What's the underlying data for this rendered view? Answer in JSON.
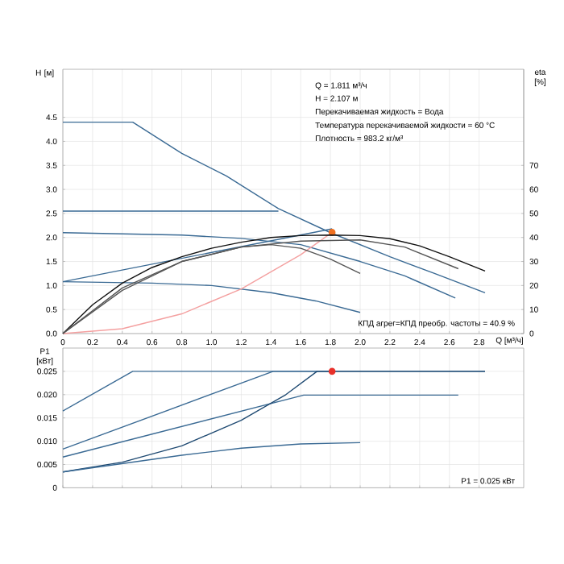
{
  "chart_data": [
    {
      "type": "line",
      "xlabel": "Q [м³/ч]",
      "ylabel": "H [м]",
      "y2label": "eta [%]",
      "xlim": [
        0,
        3.1
      ],
      "ylim": [
        0,
        5.5
      ],
      "y2lim": [
        0,
        110
      ],
      "grid": true,
      "xticks": [
        {
          "value": 0,
          "label": "0"
        },
        0.2,
        0.4,
        0.6,
        0.8,
        {
          "value": 1,
          "label": "1.0"
        },
        1.2,
        1.4,
        1.6,
        1.8,
        {
          "value": 2,
          "label": "2.0"
        },
        2.2,
        2.4,
        2.6,
        2.8
      ],
      "yticks": [
        {
          "value": 0,
          "label": "0.0"
        },
        0.5,
        {
          "value": 1,
          "label": "1.0"
        },
        1.5,
        {
          "value": 2,
          "label": "2.0"
        },
        2.5,
        {
          "value": 3,
          "label": "3.0"
        },
        3.5,
        {
          "value": 4,
          "label": "4.0"
        },
        4.5
      ],
      "y2ticks": [
        0,
        10,
        20,
        30,
        40,
        50,
        60,
        70
      ],
      "annotations": [
        "Q = 1.811 м³/ч",
        "H = 2.107 м",
        "Перекачиваемая жидкость = Вода",
        "Температура перекачиваемой жидкости = 60 °C",
        "Плотность = 983.2 кг/м³",
        "КПД агрег=КПД преобр. частоты = 40.9 %"
      ],
      "series": [
        {
          "color": "#3a6a94",
          "x": [
            0,
            0.47,
            0.8,
            1.1,
            1.45,
            1.8,
            2.2,
            2.5,
            2.84
          ],
          "values": [
            4.4,
            4.4,
            3.75,
            3.28,
            2.6,
            2.1,
            1.6,
            1.25,
            0.85
          ]
        },
        {
          "color": "#3a6a94",
          "x": [
            0,
            1.45
          ],
          "values": [
            2.55,
            2.55
          ]
        },
        {
          "color": "#3a6a94",
          "x": [
            0,
            0.8,
            1.2,
            1.6,
            2.0,
            2.3,
            2.64
          ],
          "values": [
            2.1,
            2.05,
            1.98,
            1.85,
            1.5,
            1.2,
            0.74
          ]
        },
        {
          "color": "#3a6a94",
          "x": [
            0,
            0.6,
            1.0,
            1.4,
            1.7,
            2.0
          ],
          "values": [
            1.08,
            1.05,
            1.0,
            0.85,
            0.68,
            0.44
          ]
        },
        {
          "color": "#3a6a94",
          "x": [
            0,
            1.811
          ],
          "values": [
            1.08,
            2.18
          ]
        },
        {
          "color": "#111111",
          "axis": "y2",
          "x": [
            0,
            0.2,
            0.4,
            0.6,
            0.8,
            1.0,
            1.2,
            1.4,
            1.6,
            1.8,
            2.0,
            2.2,
            2.4,
            2.6,
            2.84
          ],
          "values": [
            0,
            12,
            21,
            27.5,
            32,
            35.5,
            38,
            40,
            40.8,
            41,
            40.8,
            39.5,
            36.5,
            32,
            26
          ]
        },
        {
          "color": "#555555",
          "axis": "y2",
          "x": [
            0,
            0.4,
            0.8,
            1.2,
            1.6,
            2.0,
            2.3,
            2.66
          ],
          "values": [
            0,
            19,
            30,
            36,
            38.5,
            39,
            36,
            27
          ]
        },
        {
          "color": "#555555",
          "axis": "y2",
          "x": [
            0,
            0.4,
            0.8,
            1.2,
            1.4,
            1.6,
            1.8,
            2.0
          ],
          "values": [
            0,
            18,
            30,
            36,
            37,
            35.5,
            31,
            25
          ]
        },
        {
          "color": "#f4a0a0",
          "x": [
            0,
            0.4,
            0.8,
            1.2,
            1.6,
            1.811
          ],
          "values": [
            0,
            0.1,
            0.41,
            0.93,
            1.64,
            2.107
          ]
        },
        {
          "type": "scatter",
          "color": "#f07020",
          "x": [
            1.811
          ],
          "values": [
            2.107
          ]
        }
      ]
    },
    {
      "type": "line",
      "ylabel": "P1 [кВт]",
      "xlim": [
        0,
        3.1
      ],
      "ylim": [
        0,
        0.03
      ],
      "grid": true,
      "tick_labels": "y",
      "xticks": [
        0,
        0.2,
        0.4,
        0.6,
        0.8,
        1,
        1.2,
        1.4,
        1.6,
        1.8,
        2,
        2.2,
        2.4,
        2.6,
        2.8
      ],
      "yticks": [
        0,
        0.005,
        {
          "value": 0.01,
          "label": "0.010"
        },
        0.015,
        {
          "value": 0.02,
          "label": "0.020"
        },
        0.025
      ],
      "annotations": [
        "P1 = 0.025 кВт"
      ],
      "series": [
        {
          "color": "#3a6a94",
          "x": [
            0,
            0.47,
            2.84
          ],
          "values": [
            0.0165,
            0.025,
            0.025
          ]
        },
        {
          "color": "#3a6a94",
          "x": [
            0,
            1.415,
            1.811
          ],
          "values": [
            0.0083,
            0.025,
            0.025
          ]
        },
        {
          "color": "#3a6a94",
          "x": [
            0,
            1.62,
            2.66
          ],
          "values": [
            0.0066,
            0.0199,
            0.0199
          ]
        },
        {
          "color": "#1f4a72",
          "x": [
            0,
            0.4,
            0.8,
            1.2,
            1.5,
            1.71,
            2.84
          ],
          "values": [
            0.0034,
            0.0055,
            0.009,
            0.0145,
            0.02,
            0.025,
            0.025
          ]
        },
        {
          "color": "#3a6a94",
          "x": [
            0,
            0.8,
            1.2,
            1.6,
            2.0
          ],
          "values": [
            0.0034,
            0.007,
            0.0085,
            0.0094,
            0.0097
          ]
        },
        {
          "type": "scatter",
          "color": "#e8302a",
          "x": [
            1.811
          ],
          "values": [
            0.025
          ]
        }
      ]
    }
  ]
}
